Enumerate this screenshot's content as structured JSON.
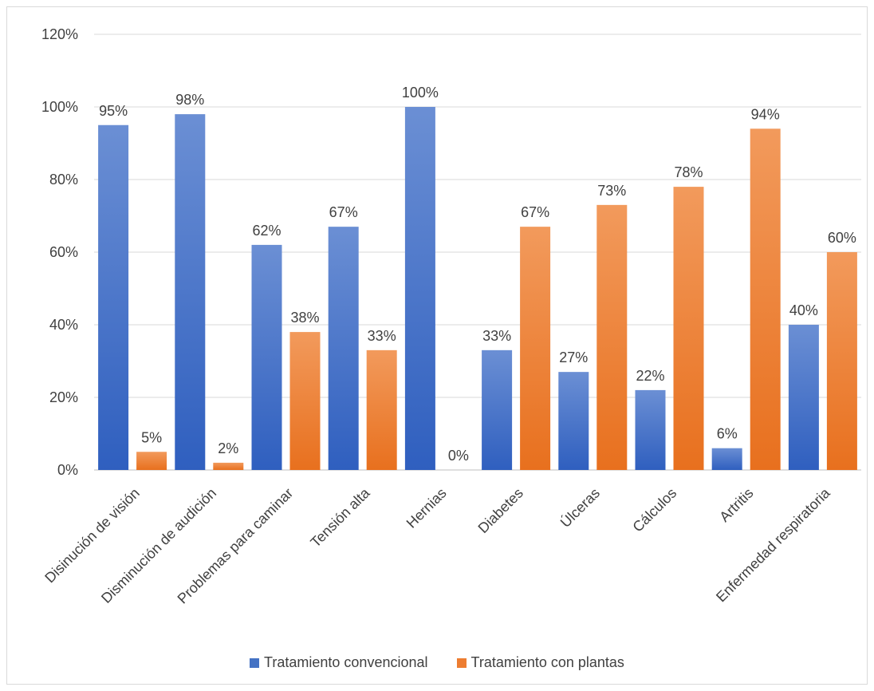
{
  "chart_data": {
    "type": "bar",
    "title": "",
    "xlabel": "",
    "ylabel": "",
    "ylim": [
      0,
      120
    ],
    "yticks": [
      "0%",
      "20%",
      "40%",
      "60%",
      "80%",
      "100%",
      "120%"
    ],
    "grid": true,
    "legend_position": "bottom",
    "categories": [
      "Disinución de visión",
      "Disminución de audición",
      "Problemas para caminar",
      "Tensión alta",
      "Hernias",
      "Diabetes",
      "Úlceras",
      "Cálculos",
      "Artritis",
      "Enfermedad respiratoria"
    ],
    "series": [
      {
        "name": "Tratamiento convencional",
        "color": "#4472c4",
        "values": [
          95,
          98,
          62,
          67,
          100,
          33,
          27,
          22,
          6,
          40
        ],
        "labels": [
          "95%",
          "98%",
          "62%",
          "67%",
          "100%",
          "33%",
          "27%",
          "22%",
          "6%",
          "40%"
        ]
      },
      {
        "name": "Tratamiento con plantas",
        "color": "#ed7d31",
        "values": [
          5,
          2,
          38,
          33,
          0,
          67,
          73,
          78,
          94,
          60
        ],
        "labels": [
          "5%",
          "2%",
          "38%",
          "33%",
          "0%",
          "67%",
          "73%",
          "78%",
          "94%",
          "60%"
        ]
      }
    ]
  }
}
